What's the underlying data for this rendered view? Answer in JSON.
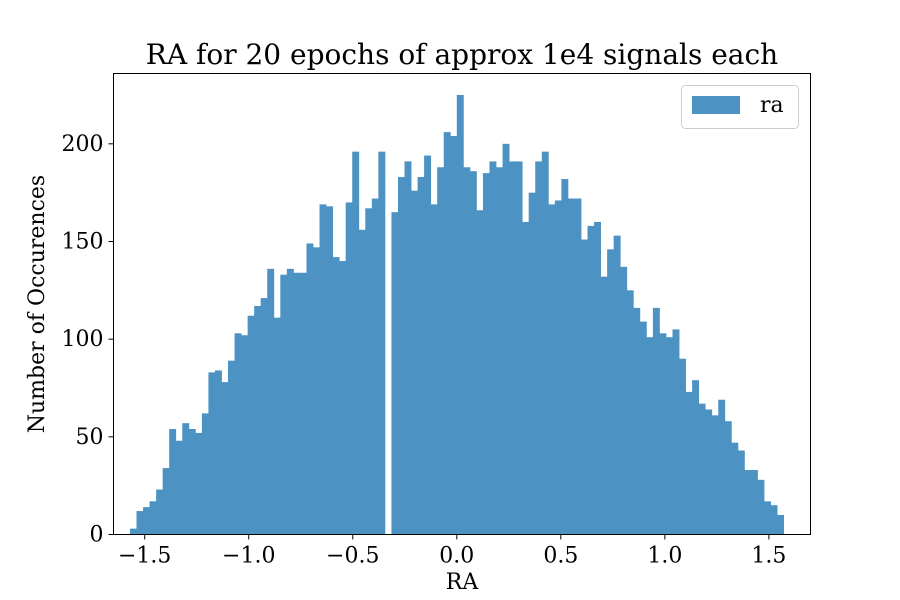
{
  "chart_data": {
    "type": "bar",
    "title": "RA for 20 epochs of approx 1e4 signals each",
    "xlabel": "RA",
    "ylabel": "Number of Occurences",
    "legend": {
      "position": "top-right",
      "entries": [
        {
          "label": "ra",
          "color": "#4c92c3"
        }
      ]
    },
    "xlim": [
      -1.65,
      1.7
    ],
    "ylim": [
      0,
      236
    ],
    "xticks": [
      -1.5,
      -1.0,
      -0.5,
      0.0,
      0.5,
      1.0,
      1.5
    ],
    "xtick_labels": [
      "−1.5",
      "−1.0",
      "−0.5",
      "0.0",
      "0.5",
      "1.0",
      "1.5"
    ],
    "yticks": [
      0,
      50,
      100,
      150,
      200
    ],
    "ytick_labels": [
      "0",
      "50",
      "100",
      "150",
      "200"
    ],
    "grid": false,
    "bar_color": "#4c92c3",
    "bin_start": -1.5708,
    "bin_width": 0.031416,
    "series": [
      {
        "name": "ra",
        "values": [
          3,
          12,
          14,
          17,
          23,
          34,
          54,
          48,
          57,
          54,
          52,
          62,
          83,
          84,
          78,
          89,
          103,
          102,
          112,
          117,
          121,
          136,
          111,
          133,
          136,
          134,
          134,
          149,
          147,
          169,
          168,
          142,
          140,
          170,
          196,
          156,
          167,
          172,
          196,
          0,
          165,
          183,
          191,
          176,
          183,
          194,
          169,
          188,
          206,
          204,
          225,
          188,
          186,
          166,
          185,
          191,
          188,
          200,
          191,
          191,
          160,
          175,
          191,
          196,
          169,
          171,
          182,
          172,
          172,
          151,
          158,
          160,
          132,
          146,
          153,
          137,
          125,
          116,
          109,
          101,
          116,
          103,
          101,
          105,
          90,
          73,
          79,
          67,
          64,
          61,
          69,
          58,
          47,
          43,
          33,
          33,
          28,
          17,
          15,
          10
        ]
      }
    ]
  }
}
